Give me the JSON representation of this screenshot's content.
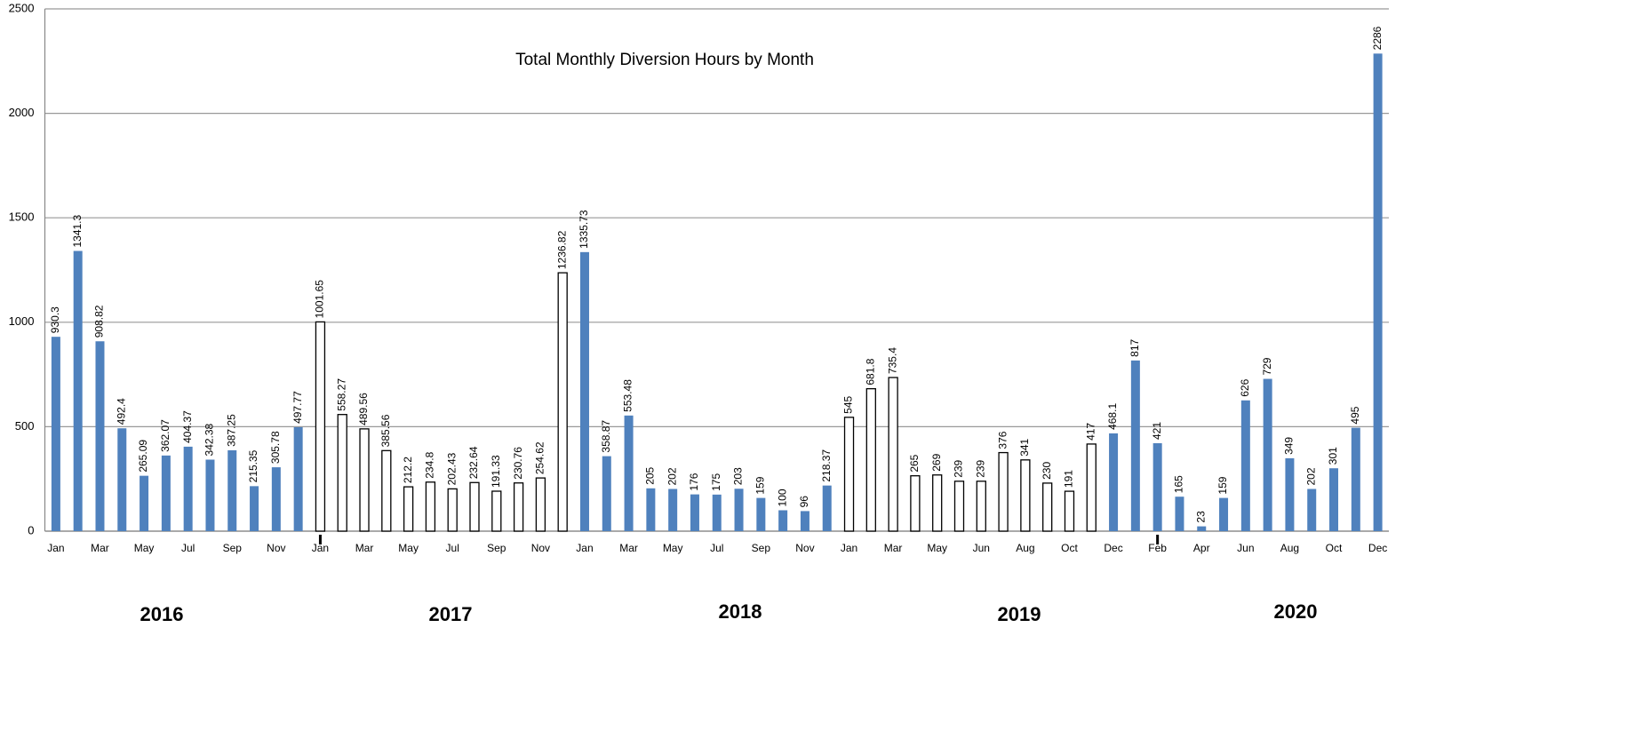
{
  "chart_data": {
    "type": "bar",
    "title": "Total Monthly Diversion Hours by Month",
    "categories": [
      "Jan",
      null,
      "Mar",
      null,
      "May",
      null,
      "Jul",
      null,
      "Sep",
      null,
      "Nov",
      null,
      "Jan",
      null,
      "Mar",
      null,
      "May",
      null,
      "Jul",
      null,
      "Sep",
      null,
      "Nov",
      null,
      "Jan",
      null,
      "Mar",
      null,
      "May",
      null,
      "Jul",
      null,
      "Sep",
      null,
      "Nov",
      null,
      "Jan",
      null,
      "Mar",
      null,
      "May",
      null,
      "Jun",
      null,
      "Aug",
      null,
      "Oct",
      null,
      "Dec",
      null,
      "Feb",
      null,
      "Apr",
      null,
      "Jun",
      null,
      "Aug",
      null,
      "Oct",
      null,
      "Dec"
    ],
    "values": [
      930.3,
      1341.3,
      908.82,
      492.4,
      265.09,
      362.07,
      404.37,
      342.38,
      387.25,
      215.35,
      305.78,
      497.77,
      1001.65,
      558.27,
      489.56,
      385.56,
      212.2,
      234.8,
      202.43,
      232.64,
      191.33,
      230.76,
      254.62,
      1236.82,
      1335.73,
      358.87,
      553.48,
      205,
      202,
      176,
      175,
      203,
      159,
      100,
      96,
      218.37,
      545,
      681.8,
      735.4,
      265,
      269,
      239,
      239,
      376,
      341,
      230,
      191,
      417,
      468.1,
      817,
      421,
      165,
      23,
      159,
      626,
      729,
      349,
      202,
      301,
      495,
      2286
    ],
    "bar_colors": [
      "#4f81bd",
      "#4f81bd",
      "#4f81bd",
      "#4f81bd",
      "#4f81bd",
      "#4f81bd",
      "#4f81bd",
      "#4f81bd",
      "#4f81bd",
      "#4f81bd",
      "#4f81bd",
      "#4f81bd",
      "#ffffff",
      "#ffffff",
      "#ffffff",
      "#ffffff",
      "#ffffff",
      "#ffffff",
      "#ffffff",
      "#ffffff",
      "#ffffff",
      "#ffffff",
      "#ffffff",
      "#ffffff",
      "#4f81bd",
      "#4f81bd",
      "#4f81bd",
      "#4f81bd",
      "#4f81bd",
      "#4f81bd",
      "#4f81bd",
      "#4f81bd",
      "#4f81bd",
      "#4f81bd",
      "#4f81bd",
      "#4f81bd",
      "#ffffff",
      "#ffffff",
      "#ffffff",
      "#ffffff",
      "#ffffff",
      "#ffffff",
      "#ffffff",
      "#ffffff",
      "#ffffff",
      "#ffffff",
      "#ffffff",
      "#ffffff",
      "#4f81bd",
      "#4f81bd",
      "#4f81bd",
      "#4f81bd",
      "#4f81bd",
      "#4f81bd",
      "#4f81bd",
      "#4f81bd",
      "#4f81bd",
      "#4f81bd",
      "#4f81bd",
      "#4f81bd",
      "#4f81bd"
    ],
    "ylim": [
      0,
      2500
    ],
    "yticks": [
      0,
      500,
      1000,
      1500,
      2000,
      2500
    ],
    "grid": true,
    "annotations": [
      "2016",
      "2017",
      "2018",
      "2019",
      "2020"
    ]
  }
}
